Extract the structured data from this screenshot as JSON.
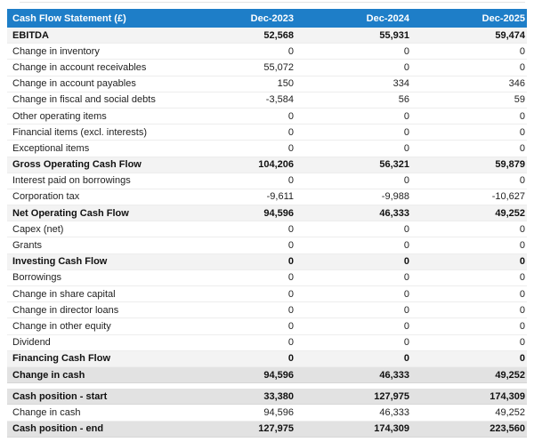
{
  "table": {
    "title": "Cash Flow Statement (£)",
    "columns": [
      "Dec-2023",
      "Dec-2024",
      "Dec-2025"
    ],
    "colors": {
      "header_bg": "#1e7ec8",
      "header_fg": "#ffffff",
      "subtotal_row_bg": "#f3f3f3",
      "total_row_bg": "#e2e2e2"
    },
    "sections": [
      {
        "rows": [
          {
            "label": "EBITDA",
            "style": "subtotal",
            "values": [
              "52,568",
              "55,931",
              "59,474"
            ]
          },
          {
            "label": "Change in inventory",
            "style": "plain",
            "values": [
              "0",
              "0",
              "0"
            ]
          },
          {
            "label": "Change in account receivables",
            "style": "plain",
            "values": [
              "55,072",
              "0",
              "0"
            ]
          },
          {
            "label": "Change in account payables",
            "style": "plain",
            "values": [
              "150",
              "334",
              "346"
            ]
          },
          {
            "label": "Change in fiscal and social debts",
            "style": "plain",
            "values": [
              "-3,584",
              "56",
              "59"
            ]
          },
          {
            "label": "Other operating items",
            "style": "plain",
            "values": [
              "0",
              "0",
              "0"
            ]
          },
          {
            "label": "Financial items (excl. interests)",
            "style": "plain",
            "values": [
              "0",
              "0",
              "0"
            ]
          },
          {
            "label": "Exceptional items",
            "style": "plain",
            "values": [
              "0",
              "0",
              "0"
            ]
          },
          {
            "label": "Gross Operating Cash Flow",
            "style": "subtotal",
            "values": [
              "104,206",
              "56,321",
              "59,879"
            ]
          },
          {
            "label": "Interest paid on borrowings",
            "style": "plain",
            "values": [
              "0",
              "0",
              "0"
            ]
          },
          {
            "label": "Corporation tax",
            "style": "plain",
            "values": [
              "-9,611",
              "-9,988",
              "-10,627"
            ]
          },
          {
            "label": "Net Operating Cash Flow",
            "style": "subtotal",
            "values": [
              "94,596",
              "46,333",
              "49,252"
            ]
          },
          {
            "label": "Capex (net)",
            "style": "plain",
            "values": [
              "0",
              "0",
              "0"
            ]
          },
          {
            "label": "Grants",
            "style": "plain",
            "values": [
              "0",
              "0",
              "0"
            ]
          },
          {
            "label": "Investing Cash Flow",
            "style": "subtotal",
            "values": [
              "0",
              "0",
              "0"
            ]
          },
          {
            "label": "Borrowings",
            "style": "plain",
            "values": [
              "0",
              "0",
              "0"
            ]
          },
          {
            "label": "Change in share capital",
            "style": "plain",
            "values": [
              "0",
              "0",
              "0"
            ]
          },
          {
            "label": "Change in director loans",
            "style": "plain",
            "values": [
              "0",
              "0",
              "0"
            ]
          },
          {
            "label": "Change in other equity",
            "style": "plain",
            "values": [
              "0",
              "0",
              "0"
            ]
          },
          {
            "label": "Dividend",
            "style": "plain",
            "values": [
              "0",
              "0",
              "0"
            ]
          },
          {
            "label": "Financing Cash Flow",
            "style": "subtotal",
            "values": [
              "0",
              "0",
              "0"
            ]
          },
          {
            "label": "Change in cash",
            "style": "total",
            "values": [
              "94,596",
              "46,333",
              "49,252"
            ]
          }
        ]
      },
      {
        "rows": [
          {
            "label": "Cash position - start",
            "style": "total",
            "values": [
              "33,380",
              "127,975",
              "174,309"
            ]
          },
          {
            "label": "Change in cash",
            "style": "plain",
            "values": [
              "94,596",
              "46,333",
              "49,252"
            ]
          },
          {
            "label": "Cash position - end",
            "style": "total",
            "values": [
              "127,975",
              "174,309",
              "223,560"
            ]
          }
        ]
      }
    ]
  }
}
